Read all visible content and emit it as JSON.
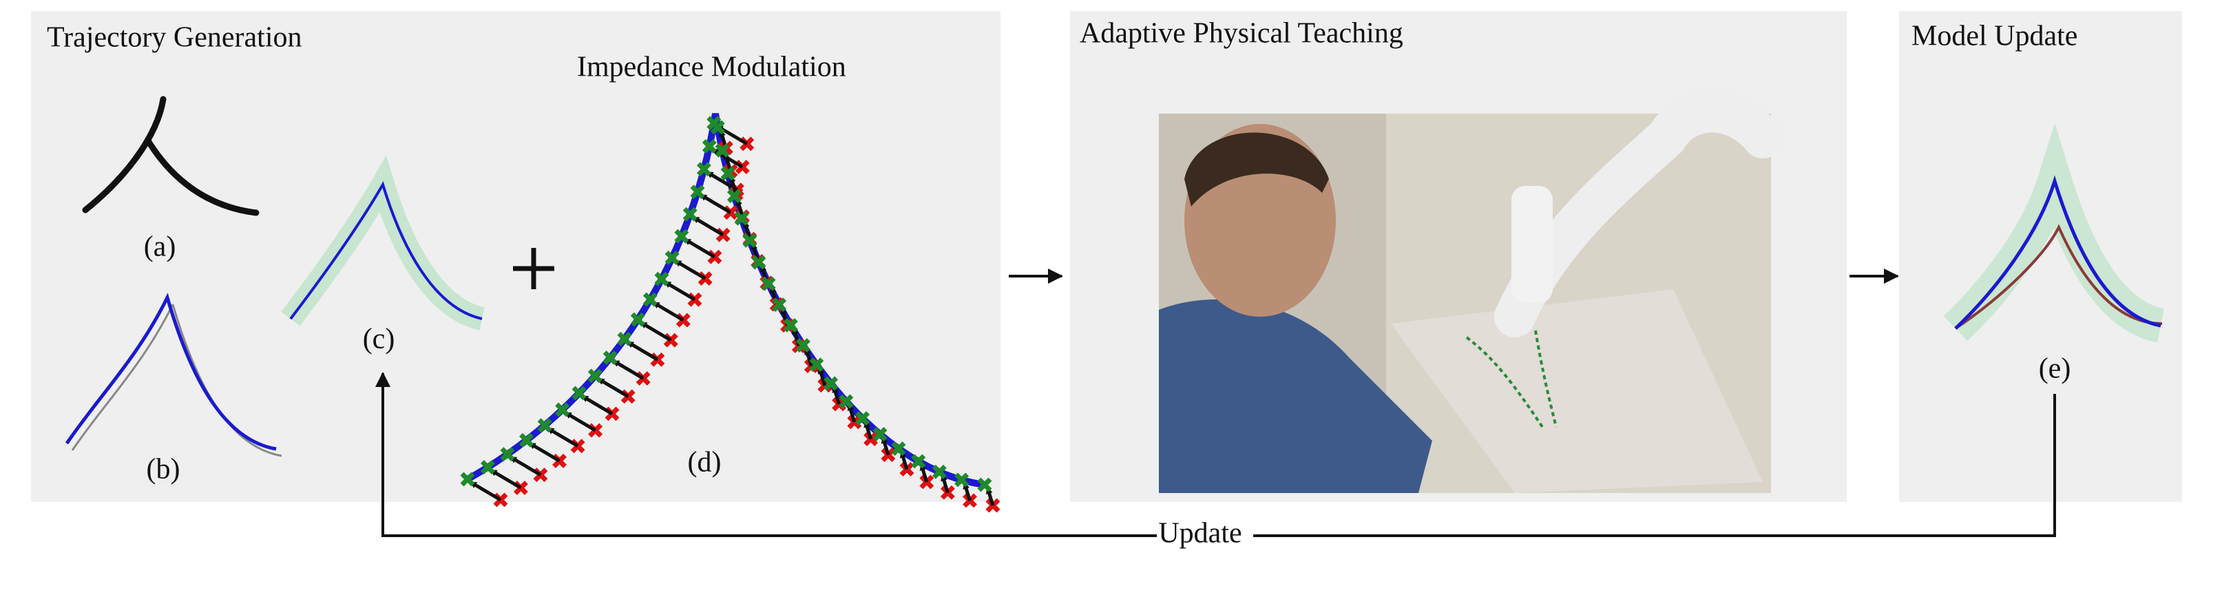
{
  "panels": [
    {
      "title": "Trajectory Generation",
      "subtitle": "Impedance Modulation",
      "labels": [
        "(a)",
        "(b)",
        "(c)",
        "(d)"
      ]
    },
    {
      "title": "Adaptive Physical Teaching"
    },
    {
      "title": "Model Update",
      "labels": [
        "(e)"
      ]
    }
  ],
  "feedback": {
    "label": "Update"
  }
}
